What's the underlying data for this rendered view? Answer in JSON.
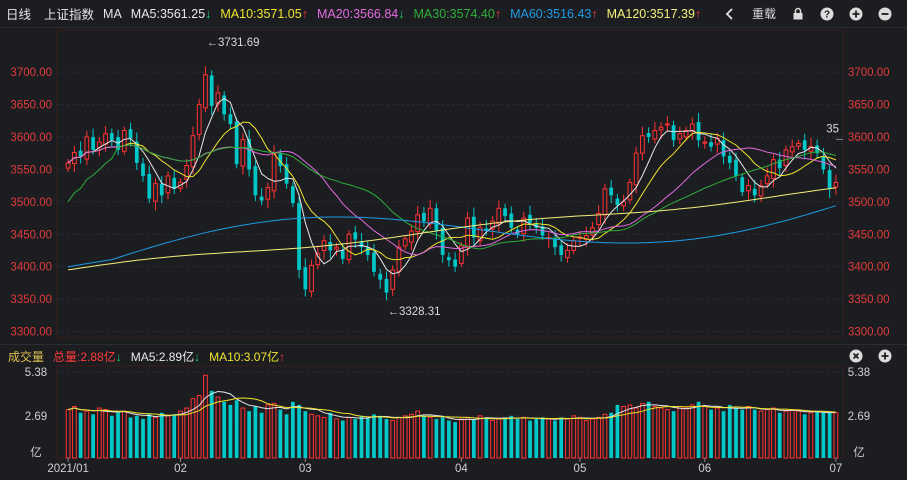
{
  "header": {
    "period_tab": "日线",
    "index_name": "上证指数",
    "indicator_name": "MA",
    "ma": [
      {
        "label": "MA5:",
        "value": "3561.25",
        "dir": "down",
        "color": "#e8e8e8"
      },
      {
        "label": "MA10:",
        "value": "3571.05",
        "dir": "up",
        "color": "#f0e52e"
      },
      {
        "label": "MA20:",
        "value": "3566.84",
        "dir": "down",
        "color": "#e36be0"
      },
      {
        "label": "MA30:",
        "value": "3574.40",
        "dir": "up",
        "color": "#2fae3a"
      },
      {
        "label": "MA60:",
        "value": "3516.43",
        "dir": "up",
        "color": "#1e9be6"
      },
      {
        "label": "MA120:",
        "value": "3517.39",
        "dir": "up",
        "color": "#f5f07a"
      }
    ],
    "reset_label": "重载",
    "icons": [
      "chevron-left-icon",
      "lock-icon",
      "help-icon",
      "zoom-in-icon",
      "zoom-out-icon"
    ]
  },
  "volume_header": {
    "title": "成交量",
    "total_label": "总量:",
    "total_value": "2.88亿",
    "total_dir": "down",
    "ma5_label": "MA5:",
    "ma5_value": "2.89亿",
    "ma5_dir": "down",
    "ma10_label": "MA10:",
    "ma10_value": "3.07亿",
    "ma10_dir": "up",
    "icons": [
      "close-icon",
      "zoom-in-icon"
    ]
  },
  "chart_data": {
    "type": "candlestick",
    "price_axis_ticks": [
      "3700.00",
      "3650.00",
      "3600.00",
      "3550.00",
      "3500.00",
      "3450.00",
      "3400.00",
      "3350.00",
      "3300.00"
    ],
    "price_range": [
      3290,
      3765
    ],
    "high_annotation": "←3731.69",
    "low_annotation": "←3328.31",
    "last_price_tag": "35",
    "volume_axis_ticks": [
      "5.38",
      "2.69",
      "亿"
    ],
    "volume_range": [
      0,
      5.38
    ],
    "x_labels": [
      "2021/01",
      "02",
      "03",
      "04",
      "05",
      "06",
      "07"
    ],
    "x_label_index": [
      0,
      18,
      38,
      63,
      82,
      102,
      123
    ],
    "colors": {
      "up": "#ff3232",
      "down": "#00c8c8",
      "ma5": "#e8e8e8",
      "ma10": "#f0e52e",
      "ma20": "#e36be0",
      "ma30": "#2fae3a",
      "ma60": "#1e9be6",
      "ma120": "#f5f07a",
      "vma5": "#e8e8e8",
      "vma10": "#f0e52e"
    },
    "closes": [
      3560,
      3576,
      3570,
      3600,
      3580,
      3592,
      3605,
      3595,
      3580,
      3610,
      3598,
      3560,
      3540,
      3505,
      3528,
      3510,
      3540,
      3520,
      3530,
      3556,
      3602,
      3650,
      3696,
      3648,
      3668,
      3635,
      3620,
      3558,
      3596,
      3550,
      3510,
      3502,
      3522,
      3575,
      3555,
      3528,
      3498,
      3395,
      3365,
      3402,
      3420,
      3440,
      3425,
      3430,
      3412,
      3450,
      3442,
      3430,
      3418,
      3392,
      3380,
      3360,
      3395,
      3430,
      3443,
      3455,
      3480,
      3470,
      3490,
      3456,
      3418,
      3410,
      3400,
      3432,
      3475,
      3445,
      3460,
      3455,
      3470,
      3490,
      3478,
      3460,
      3450,
      3475,
      3468,
      3460,
      3448,
      3445,
      3430,
      3418,
      3425,
      3440,
      3445,
      3448,
      3460,
      3482,
      3520,
      3510,
      3495,
      3500,
      3530,
      3575,
      3602,
      3600,
      3610,
      3615,
      3620,
      3595,
      3605,
      3610,
      3620,
      3595,
      3592,
      3585,
      3598,
      3570,
      3560,
      3540,
      3515,
      3525,
      3510,
      3525,
      3540,
      3565,
      3552,
      3580,
      3585,
      3590,
      3580,
      3585,
      3575,
      3550,
      3520,
      3530
    ],
    "volumes": [
      3.1,
      3.3,
      2.9,
      3.0,
      2.8,
      3.2,
      3.1,
      2.7,
      2.9,
      3.0,
      2.6,
      2.7,
      2.5,
      2.8,
      2.6,
      2.9,
      2.7,
      2.8,
      3.0,
      3.2,
      3.8,
      4.0,
      5.3,
      4.3,
      3.9,
      3.6,
      3.4,
      3.7,
      3.2,
      3.0,
      3.3,
      2.9,
      3.4,
      3.5,
      3.1,
      2.8,
      3.6,
      3.4,
      3.0,
      2.8,
      2.7,
      2.6,
      2.9,
      2.5,
      2.4,
      2.6,
      2.5,
      2.7,
      2.6,
      2.8,
      2.7,
      2.5,
      2.4,
      2.6,
      2.7,
      2.8,
      3.0,
      2.7,
      2.6,
      2.5,
      2.6,
      2.4,
      2.3,
      2.5,
      2.6,
      2.5,
      2.7,
      2.6,
      2.4,
      2.5,
      2.6,
      2.7,
      2.5,
      2.6,
      2.4,
      2.5,
      2.6,
      2.5,
      2.4,
      2.6,
      2.5,
      2.7,
      2.6,
      2.4,
      2.5,
      2.6,
      2.8,
      2.9,
      3.4,
      3.3,
      3.4,
      3.2,
      3.5,
      3.6,
      3.3,
      3.2,
      3.1,
      3.0,
      3.3,
      3.2,
      3.4,
      3.6,
      3.3,
      3.1,
      3.2,
      3.0,
      3.4,
      3.2,
      3.1,
      3.3,
      3.1,
      3.0,
      3.1,
      3.2,
      2.9,
      3.0,
      3.1,
      3.0,
      2.8,
      2.9,
      3.0,
      2.9,
      2.9,
      2.9
    ]
  }
}
